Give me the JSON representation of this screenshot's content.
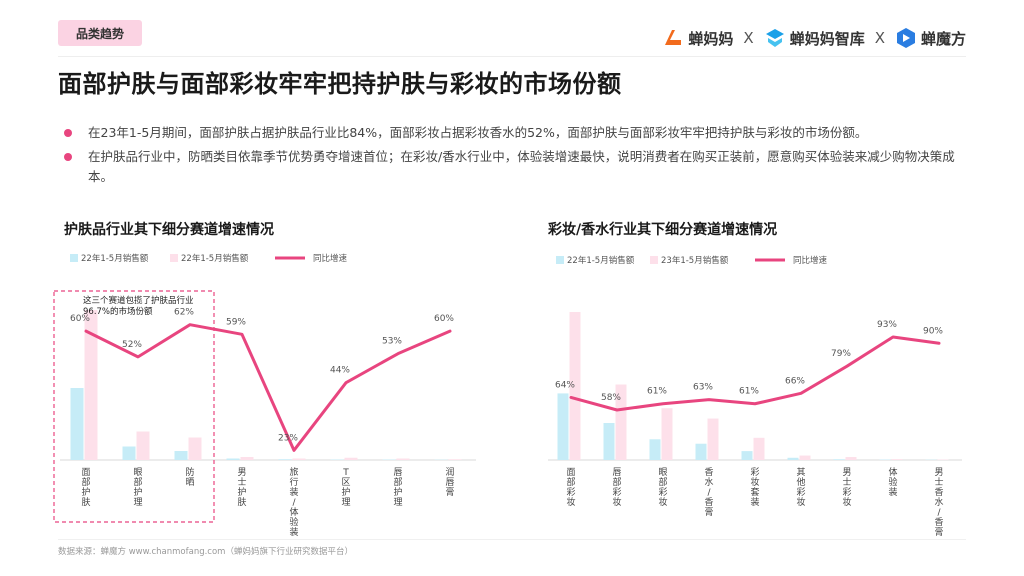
{
  "header": {
    "tag": "品类趋势",
    "brands": [
      {
        "name": "蝉妈妈",
        "icon": "chanmama-logo-icon",
        "color": "#f26b1d"
      },
      {
        "name": "蝉妈妈智库",
        "icon": "chanmama-zhiku-logo-icon",
        "color": "#1aa0e8"
      },
      {
        "name": "蝉魔方",
        "icon": "chanmofang-logo-icon",
        "color": "#2a7de1"
      }
    ],
    "separator": "X"
  },
  "title": "面部护肤与面部彩妆牢牢把持护肤与彩妆的市场份额",
  "bullets": [
    "在23年1-5月期间，面部护肤占据护肤品行业比84%，面部彩妆占据彩妆香水的52%，面部护肤与面部彩妆牢牢把持护肤与彩妆的市场份额。",
    "在护肤品行业中，防晒类目依靠季节优势勇夺增速首位；在彩妆/香水行业中，体验装增速最快，说明消费者在购买正装前，愿意购买体验装来减少购物决策成本。"
  ],
  "chart_data": [
    {
      "type": "bar",
      "title": "护肤品行业其下细分赛道增速情况",
      "categories": [
        "面部护肤",
        "眼部护理",
        "防晒",
        "男士护肤",
        "旅行装/体验装",
        "T区护理",
        "唇部护理",
        "润唇膏"
      ],
      "series": [
        {
          "name": "22年1-5月销售额",
          "type": "bar",
          "color": "#c6ecf7",
          "values": [
            48,
            9,
            6,
            1,
            0.5,
            0.3,
            0.3,
            0.2
          ]
        },
        {
          "name": "22年1-5月销售额",
          "type": "bar",
          "color": "#fde0ea",
          "values": [
            100,
            19,
            15,
            2,
            1,
            1.5,
            1,
            0.5
          ]
        },
        {
          "name": "同比增速",
          "type": "line",
          "color": "#e8457f",
          "values": [
            60,
            52,
            62,
            59,
            23,
            44,
            53,
            60
          ],
          "labels": [
            "60%",
            "52%",
            "62%",
            "59%",
            "23%",
            "44%",
            "53%",
            "60%"
          ]
        }
      ],
      "annotation": "这三个赛道包揽了护肤品行业96.7%的市场份额",
      "grid": false,
      "legend": "top-left"
    },
    {
      "type": "bar",
      "title": "彩妆/香水行业其下细分赛道增速情况",
      "categories": [
        "面部彩妆",
        "唇部彩妆",
        "眼部彩妆",
        "香水/香膏",
        "彩妆套装",
        "其他彩妆",
        "男士彩妆",
        "体验装",
        "男士香水/香膏"
      ],
      "series": [
        {
          "name": "22年1-5月销售额",
          "type": "bar",
          "color": "#c6ecf7",
          "values": [
            45,
            25,
            14,
            11,
            6,
            1.5,
            0.5,
            0.3,
            0.2
          ]
        },
        {
          "name": "23年1-5月销售额",
          "type": "bar",
          "color": "#fde0ea",
          "values": [
            100,
            51,
            35,
            28,
            15,
            3,
            2,
            0.6,
            0.3
          ]
        },
        {
          "name": "同比增速",
          "type": "line",
          "color": "#e8457f",
          "values": [
            64,
            58,
            61,
            63,
            61,
            66,
            79,
            93,
            90
          ],
          "labels": [
            "64%",
            "58%",
            "61%",
            "63%",
            "61%",
            "66%",
            "79%",
            "93%",
            "90%"
          ]
        }
      ],
      "grid": false,
      "legend": "top-left"
    }
  ],
  "source": "数据来源：蝉魔方 www.chanmofang.com（蝉妈妈旗下行业研究数据平台）"
}
